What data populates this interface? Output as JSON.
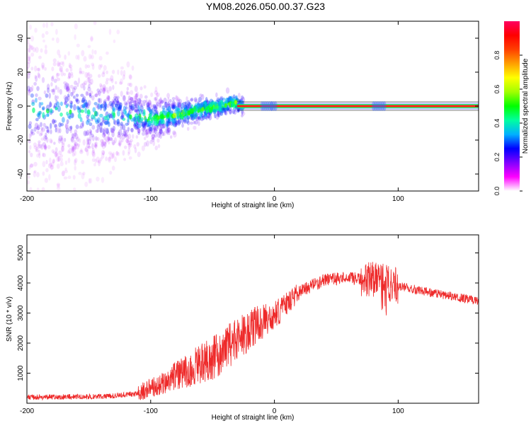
{
  "title": "YM08.2026.050.00.37.G23",
  "chart_data": [
    {
      "type": "heatmap",
      "xlabel": "Height of straight line (km)",
      "ylabel": "Frequency (Hz)",
      "xlim": [
        -200,
        165
      ],
      "ylim": [
        -50,
        50
      ],
      "xticks": [
        -200,
        -100,
        0,
        100
      ],
      "yticks": [
        -40,
        -20,
        0,
        20,
        40
      ],
      "colorbar": {
        "label": "Normalized spectral amplitude",
        "range": [
          0,
          1
        ],
        "ticks": [
          "0.0",
          "0.2",
          "0.4",
          "0.6",
          "0.8"
        ],
        "colors": [
          "#ffffff",
          "#ff00ff",
          "#8000ff",
          "#0000ff",
          "#00b0ff",
          "#00ffa0",
          "#00ff00",
          "#a0ff00",
          "#ffff00",
          "#ffa000",
          "#ff4000",
          "#ff0000",
          "#ff0060"
        ]
      },
      "signal": {
        "description_free": true,
        "dominant_frequency_hz": 0,
        "spread_start_km": -200,
        "converged_from_km": -30,
        "drift_minimum_hz": -10,
        "drift_minimum_km": -100
      }
    },
    {
      "type": "line",
      "xlabel": "Height of straight line (km)",
      "ylabel": "SNR (10 * v/v)",
      "xlim": [
        -200,
        165
      ],
      "ylim": [
        0,
        5600
      ],
      "xticks": [
        -200,
        -100,
        0,
        100
      ],
      "yticks": [
        1000,
        2000,
        3000,
        4000,
        5000
      ],
      "color": "#ee2a2a",
      "envelope": {
        "x": [
          -200,
          -140,
          -110,
          -90,
          -70,
          -50,
          -30,
          -15,
          0,
          10,
          20,
          40,
          60,
          80,
          90,
          100,
          130,
          165
        ],
        "y": [
          200,
          220,
          320,
          700,
          1100,
          1500,
          2100,
          2600,
          2900,
          3300,
          3700,
          4100,
          4150,
          4100,
          4000,
          3900,
          3650,
          3400
        ]
      }
    }
  ]
}
